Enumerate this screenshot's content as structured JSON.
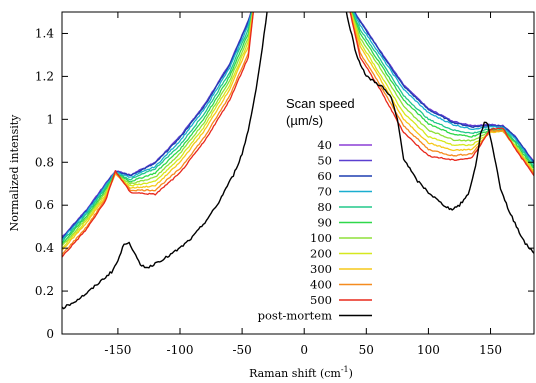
{
  "chart_data": {
    "type": "line",
    "xlabel_main": "Raman shift (cm",
    "xlabel_sup": "-1",
    "xlabel_close": ")",
    "ylabel": "Normalized intensity",
    "xlim": [
      -195,
      185
    ],
    "ylim": [
      0,
      1.5
    ],
    "x_ticks": [
      -150,
      -100,
      -50,
      0,
      50,
      100,
      150
    ],
    "x_tick_labels": [
      "-150",
      "-100",
      "-50",
      "0",
      "50",
      "100",
      "150"
    ],
    "y_ticks": [
      0,
      0.2,
      0.4,
      0.6,
      0.8,
      1,
      1.2,
      1.4
    ],
    "y_tick_labels": [
      "0",
      "0.2",
      "0.4",
      "0.6",
      "0.8",
      "1",
      "1.2",
      "1.4"
    ],
    "grid": false,
    "legend_title_line1": "Scan speed",
    "legend_title_line2": "(µm/s)",
    "legend_placement": "center",
    "series": [
      {
        "name": "40",
        "color": "#8b3fd6",
        "left": [
          [
            -195,
            0.45
          ],
          [
            -175,
            0.58
          ],
          [
            -160,
            0.7
          ],
          [
            -152,
            0.76
          ],
          [
            -140,
            0.74
          ],
          [
            -120,
            0.8
          ],
          [
            -100,
            0.92
          ],
          [
            -80,
            1.07
          ],
          [
            -60,
            1.26
          ],
          [
            -45,
            1.46
          ],
          [
            -40,
            1.55
          ]
        ],
        "right": [
          [
            35,
            1.55
          ],
          [
            45,
            1.46
          ],
          [
            60,
            1.33
          ],
          [
            80,
            1.16
          ],
          [
            100,
            1.05
          ],
          [
            120,
            0.99
          ],
          [
            135,
            0.97
          ],
          [
            150,
            0.975
          ],
          [
            160,
            0.97
          ],
          [
            170,
            0.92
          ],
          [
            185,
            0.8
          ]
        ]
      },
      {
        "name": "50",
        "color": "#5a3fd0",
        "left": [
          [
            -195,
            0.45
          ],
          [
            -175,
            0.58
          ],
          [
            -160,
            0.7
          ],
          [
            -152,
            0.76
          ],
          [
            -140,
            0.74
          ],
          [
            -120,
            0.8
          ],
          [
            -100,
            0.92
          ],
          [
            -80,
            1.07
          ],
          [
            -60,
            1.26
          ],
          [
            -45,
            1.46
          ],
          [
            -40,
            1.55
          ]
        ],
        "right": [
          [
            35,
            1.55
          ],
          [
            45,
            1.46
          ],
          [
            60,
            1.33
          ],
          [
            80,
            1.16
          ],
          [
            100,
            1.05
          ],
          [
            120,
            0.99
          ],
          [
            135,
            0.97
          ],
          [
            150,
            0.975
          ],
          [
            160,
            0.97
          ],
          [
            170,
            0.92
          ],
          [
            185,
            0.8
          ]
        ]
      },
      {
        "name": "60",
        "color": "#1f3fb0",
        "left": [
          [
            -195,
            0.445
          ],
          [
            -175,
            0.575
          ],
          [
            -160,
            0.695
          ],
          [
            -152,
            0.758
          ],
          [
            -140,
            0.738
          ],
          [
            -120,
            0.795
          ],
          [
            -100,
            0.915
          ],
          [
            -80,
            1.065
          ],
          [
            -60,
            1.255
          ],
          [
            -45,
            1.455
          ],
          [
            -40,
            1.55
          ]
        ],
        "right": [
          [
            35,
            1.55
          ],
          [
            45,
            1.455
          ],
          [
            60,
            1.325
          ],
          [
            80,
            1.155
          ],
          [
            100,
            1.045
          ],
          [
            120,
            0.985
          ],
          [
            135,
            0.965
          ],
          [
            150,
            0.972
          ],
          [
            160,
            0.968
          ],
          [
            170,
            0.918
          ],
          [
            185,
            0.798
          ]
        ]
      },
      {
        "name": "70",
        "color": "#1aaecf",
        "left": [
          [
            -195,
            0.44
          ],
          [
            -175,
            0.57
          ],
          [
            -160,
            0.69
          ],
          [
            -152,
            0.755
          ],
          [
            -140,
            0.73
          ],
          [
            -120,
            0.78
          ],
          [
            -100,
            0.9
          ],
          [
            -80,
            1.05
          ],
          [
            -60,
            1.24
          ],
          [
            -45,
            1.44
          ],
          [
            -40,
            1.55
          ]
        ],
        "right": [
          [
            35,
            1.55
          ],
          [
            45,
            1.44
          ],
          [
            60,
            1.31
          ],
          [
            80,
            1.14
          ],
          [
            100,
            1.03
          ],
          [
            120,
            0.975
          ],
          [
            135,
            0.955
          ],
          [
            150,
            0.965
          ],
          [
            160,
            0.962
          ],
          [
            170,
            0.91
          ],
          [
            185,
            0.79
          ]
        ]
      },
      {
        "name": "80",
        "color": "#22c88a",
        "left": [
          [
            -195,
            0.43
          ],
          [
            -175,
            0.56
          ],
          [
            -160,
            0.68
          ],
          [
            -152,
            0.75
          ],
          [
            -140,
            0.72
          ],
          [
            -120,
            0.77
          ],
          [
            -100,
            0.88
          ],
          [
            -80,
            1.03
          ],
          [
            -60,
            1.22
          ],
          [
            -45,
            1.42
          ],
          [
            -40,
            1.55
          ]
        ],
        "right": [
          [
            35,
            1.55
          ],
          [
            45,
            1.42
          ],
          [
            60,
            1.29
          ],
          [
            80,
            1.11
          ],
          [
            100,
            1.0
          ],
          [
            120,
            0.95
          ],
          [
            135,
            0.935
          ],
          [
            150,
            0.955
          ],
          [
            160,
            0.955
          ],
          [
            170,
            0.9
          ],
          [
            185,
            0.78
          ]
        ]
      },
      {
        "name": "90",
        "color": "#2fd84a",
        "left": [
          [
            -195,
            0.42
          ],
          [
            -175,
            0.55
          ],
          [
            -160,
            0.67
          ],
          [
            -152,
            0.75
          ],
          [
            -140,
            0.71
          ],
          [
            -120,
            0.75
          ],
          [
            -100,
            0.86
          ],
          [
            -80,
            1.01
          ],
          [
            -60,
            1.2
          ],
          [
            -45,
            1.4
          ],
          [
            -40,
            1.55
          ]
        ],
        "right": [
          [
            35,
            1.55
          ],
          [
            45,
            1.4
          ],
          [
            60,
            1.27
          ],
          [
            80,
            1.09
          ],
          [
            100,
            0.98
          ],
          [
            120,
            0.93
          ],
          [
            135,
            0.92
          ],
          [
            150,
            0.95
          ],
          [
            160,
            0.95
          ],
          [
            170,
            0.89
          ],
          [
            185,
            0.77
          ]
        ]
      },
      {
        "name": "100",
        "color": "#8fe03a",
        "left": [
          [
            -195,
            0.41
          ],
          [
            -175,
            0.54
          ],
          [
            -160,
            0.66
          ],
          [
            -152,
            0.745
          ],
          [
            -140,
            0.7
          ],
          [
            -120,
            0.73
          ],
          [
            -100,
            0.84
          ],
          [
            -80,
            0.99
          ],
          [
            -60,
            1.18
          ],
          [
            -45,
            1.38
          ],
          [
            -40,
            1.55
          ]
        ],
        "right": [
          [
            35,
            1.55
          ],
          [
            45,
            1.38
          ],
          [
            60,
            1.25
          ],
          [
            80,
            1.06
          ],
          [
            100,
            0.95
          ],
          [
            120,
            0.905
          ],
          [
            135,
            0.9
          ],
          [
            150,
            0.945
          ],
          [
            160,
            0.945
          ],
          [
            170,
            0.88
          ],
          [
            185,
            0.76
          ]
        ]
      },
      {
        "name": "200",
        "color": "#d6e81e",
        "left": [
          [
            -195,
            0.4
          ],
          [
            -175,
            0.53
          ],
          [
            -160,
            0.65
          ],
          [
            -152,
            0.745
          ],
          [
            -140,
            0.69
          ],
          [
            -120,
            0.71
          ],
          [
            -100,
            0.82
          ],
          [
            -80,
            0.97
          ],
          [
            -60,
            1.16
          ],
          [
            -45,
            1.36
          ],
          [
            -40,
            1.55
          ]
        ],
        "right": [
          [
            35,
            1.55
          ],
          [
            45,
            1.36
          ],
          [
            60,
            1.22
          ],
          [
            80,
            1.03
          ],
          [
            100,
            0.92
          ],
          [
            120,
            0.88
          ],
          [
            135,
            0.88
          ],
          [
            150,
            0.94
          ],
          [
            160,
            0.945
          ],
          [
            170,
            0.875
          ],
          [
            185,
            0.755
          ]
        ]
      },
      {
        "name": "300",
        "color": "#f6c81a",
        "left": [
          [
            -195,
            0.39
          ],
          [
            -175,
            0.52
          ],
          [
            -160,
            0.64
          ],
          [
            -152,
            0.745
          ],
          [
            -140,
            0.68
          ],
          [
            -120,
            0.69
          ],
          [
            -100,
            0.8
          ],
          [
            -80,
            0.95
          ],
          [
            -60,
            1.14
          ],
          [
            -45,
            1.34
          ],
          [
            -40,
            1.55
          ]
        ],
        "right": [
          [
            35,
            1.55
          ],
          [
            45,
            1.34
          ],
          [
            60,
            1.2
          ],
          [
            80,
            1.0
          ],
          [
            100,
            0.89
          ],
          [
            120,
            0.855
          ],
          [
            135,
            0.86
          ],
          [
            150,
            0.94
          ],
          [
            160,
            0.945
          ],
          [
            170,
            0.87
          ],
          [
            185,
            0.75
          ]
        ]
      },
      {
        "name": "400",
        "color": "#f58b1f",
        "left": [
          [
            -195,
            0.37
          ],
          [
            -175,
            0.5
          ],
          [
            -160,
            0.63
          ],
          [
            -152,
            0.75
          ],
          [
            -140,
            0.67
          ],
          [
            -120,
            0.67
          ],
          [
            -100,
            0.77
          ],
          [
            -80,
            0.92
          ],
          [
            -60,
            1.11
          ],
          [
            -45,
            1.31
          ],
          [
            -40,
            1.55
          ]
        ],
        "right": [
          [
            35,
            1.55
          ],
          [
            45,
            1.31
          ],
          [
            60,
            1.17
          ],
          [
            80,
            0.97
          ],
          [
            100,
            0.86
          ],
          [
            120,
            0.83
          ],
          [
            135,
            0.84
          ],
          [
            150,
            0.945
          ],
          [
            160,
            0.95
          ],
          [
            170,
            0.865
          ],
          [
            185,
            0.745
          ]
        ]
      },
      {
        "name": "500",
        "color": "#e8281c",
        "left": [
          [
            -195,
            0.36
          ],
          [
            -175,
            0.49
          ],
          [
            -160,
            0.62
          ],
          [
            -152,
            0.76
          ],
          [
            -140,
            0.66
          ],
          [
            -120,
            0.65
          ],
          [
            -100,
            0.75
          ],
          [
            -80,
            0.9
          ],
          [
            -60,
            1.09
          ],
          [
            -45,
            1.29
          ],
          [
            -40,
            1.55
          ]
        ],
        "right": [
          [
            35,
            1.55
          ],
          [
            45,
            1.29
          ],
          [
            60,
            1.15
          ],
          [
            80,
            0.94
          ],
          [
            100,
            0.83
          ],
          [
            120,
            0.81
          ],
          [
            135,
            0.82
          ],
          [
            150,
            0.955
          ],
          [
            160,
            0.96
          ],
          [
            170,
            0.86
          ],
          [
            185,
            0.74
          ]
        ]
      },
      {
        "name": "post-mortem",
        "color": "#000000",
        "left": [
          [
            -195,
            0.12
          ],
          [
            -185,
            0.15
          ],
          [
            -175,
            0.19
          ],
          [
            -165,
            0.24
          ],
          [
            -155,
            0.29
          ],
          [
            -150,
            0.34
          ],
          [
            -145,
            0.42
          ],
          [
            -141,
            0.43
          ],
          [
            -137,
            0.38
          ],
          [
            -132,
            0.32
          ],
          [
            -125,
            0.31
          ],
          [
            -120,
            0.33
          ],
          [
            -110,
            0.36
          ],
          [
            -100,
            0.4
          ],
          [
            -90,
            0.45
          ],
          [
            -80,
            0.52
          ],
          [
            -70,
            0.6
          ],
          [
            -62,
            0.69
          ],
          [
            -57,
            0.74
          ],
          [
            -50,
            0.84
          ],
          [
            -45,
            0.95
          ],
          [
            -40,
            1.1
          ],
          [
            -35,
            1.28
          ],
          [
            -31,
            1.45
          ],
          [
            -29,
            1.55
          ]
        ],
        "right": [
          [
            32,
            1.55
          ],
          [
            36,
            1.45
          ],
          [
            42,
            1.3
          ],
          [
            50,
            1.2
          ],
          [
            58,
            1.17
          ],
          [
            63,
            1.15
          ],
          [
            70,
            1.1
          ],
          [
            75,
            1.0
          ],
          [
            80,
            0.82
          ],
          [
            90,
            0.72
          ],
          [
            100,
            0.66
          ],
          [
            110,
            0.61
          ],
          [
            118,
            0.58
          ],
          [
            125,
            0.6
          ],
          [
            132,
            0.65
          ],
          [
            138,
            0.78
          ],
          [
            142,
            0.93
          ],
          [
            145,
            0.99
          ],
          [
            148,
            0.97
          ],
          [
            152,
            0.86
          ],
          [
            158,
            0.68
          ],
          [
            165,
            0.57
          ],
          [
            172,
            0.49
          ],
          [
            178,
            0.42
          ],
          [
            185,
            0.38
          ]
        ]
      }
    ]
  }
}
